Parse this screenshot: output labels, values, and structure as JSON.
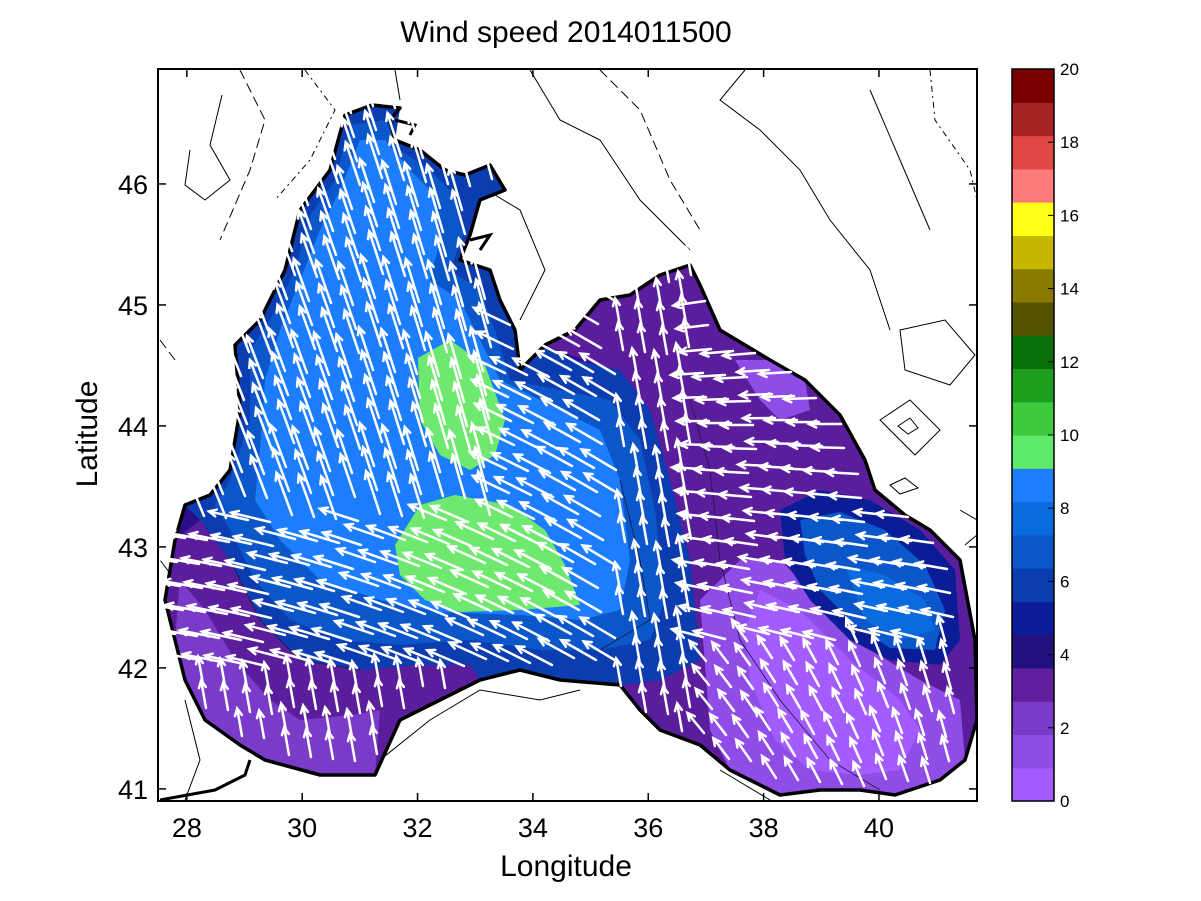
{
  "chart_data": {
    "type": "heatmap",
    "title": "Wind speed 2014011500",
    "xlabel": "Longitude",
    "ylabel": "Latitude",
    "xlim": [
      27.5,
      41.7
    ],
    "ylim": [
      40.9,
      46.95
    ],
    "x_ticks": [
      28,
      30,
      32,
      34,
      36,
      38,
      40
    ],
    "y_ticks": [
      41,
      42,
      43,
      44,
      45,
      46
    ],
    "colorbar": {
      "range": [
        0,
        20
      ],
      "ticks": [
        0,
        2,
        4,
        6,
        8,
        10,
        12,
        14,
        16,
        18,
        20
      ],
      "colors": [
        "#a35cff",
        "#8f4ce6",
        "#7a3cc8",
        "#5f1f9e",
        "#23127e",
        "#0a1c96",
        "#0b3db0",
        "#0b56c8",
        "#0a6ae0",
        "#1c7dff",
        "#5eea6a",
        "#3dc93c",
        "#1e9e1e",
        "#0a6f0a",
        "#555200",
        "#8a7a00",
        "#c7b700",
        "#ffff18",
        "#ff7b7b",
        "#e04848",
        "#a82424",
        "#7a0000"
      ]
    },
    "grid": false,
    "wind_regions": [
      {
        "label": "8",
        "lon": 32.8,
        "lat": 44.0
      },
      {
        "label": "8",
        "lon": 33.2,
        "lat": 42.9
      },
      {
        "label": "4",
        "lon": 39.6,
        "lat": 42.6
      },
      {
        "label": "2",
        "lon": 38.6,
        "lat": 41.8
      },
      {
        "label": "2",
        "lon": 29.0,
        "lat": 41.6
      }
    ]
  }
}
